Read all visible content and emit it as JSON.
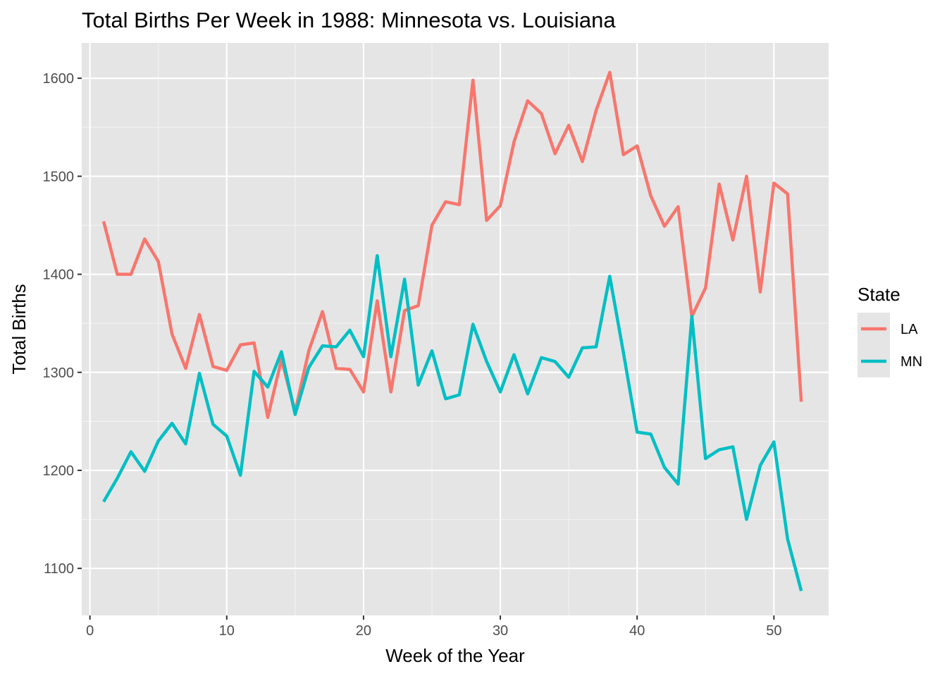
{
  "chart_data": {
    "type": "line",
    "title": "Total Births Per Week in 1988: Minnesota vs. Louisiana",
    "xlabel": "Week of the Year",
    "ylabel": "Total Births",
    "xlim": [
      -0.6,
      54.0
    ],
    "ylim": [
      1052,
      1636
    ],
    "x_ticks": [
      0,
      10,
      20,
      30,
      40,
      50
    ],
    "y_ticks": [
      1100,
      1200,
      1300,
      1400,
      1500,
      1600
    ],
    "grid": true,
    "legend": {
      "title": "State",
      "position": "right"
    },
    "x": [
      1,
      2,
      3,
      4,
      5,
      6,
      7,
      8,
      9,
      10,
      11,
      12,
      13,
      14,
      15,
      16,
      17,
      18,
      19,
      20,
      21,
      22,
      23,
      24,
      25,
      26,
      27,
      28,
      29,
      30,
      31,
      32,
      33,
      34,
      35,
      36,
      37,
      38,
      39,
      40,
      41,
      42,
      43,
      44,
      45,
      46,
      47,
      48,
      49,
      50,
      51,
      52
    ],
    "series": [
      {
        "name": "LA",
        "color": "#f8766d",
        "values": [
          1454,
          1400,
          1400,
          1436,
          1413,
          1339,
          1304,
          1359,
          1306,
          1302,
          1328,
          1330,
          1254,
          1313,
          1260,
          1322,
          1362,
          1304,
          1303,
          1280,
          1373,
          1280,
          1363,
          1368,
          1450,
          1474,
          1471,
          1598,
          1455,
          1470,
          1535,
          1577,
          1564,
          1523,
          1552,
          1515,
          1567,
          1606,
          1522,
          1531,
          1480,
          1449,
          1469,
          1357,
          1386,
          1492,
          1435,
          1500,
          1382,
          1493,
          1482,
          1270
        ]
      },
      {
        "name": "MN",
        "color": "#00bfc4",
        "values": [
          1168,
          1192,
          1219,
          1199,
          1230,
          1248,
          1227,
          1299,
          1247,
          1235,
          1195,
          1301,
          1285,
          1321,
          1257,
          1305,
          1327,
          1326,
          1343,
          1316,
          1419,
          1316,
          1395,
          1287,
          1322,
          1273,
          1277,
          1349,
          1311,
          1280,
          1318,
          1278,
          1315,
          1311,
          1295,
          1325,
          1326,
          1398,
          1320,
          1239,
          1237,
          1203,
          1186,
          1357,
          1212,
          1221,
          1224,
          1150,
          1205,
          1229,
          1130,
          1077
        ]
      }
    ]
  }
}
